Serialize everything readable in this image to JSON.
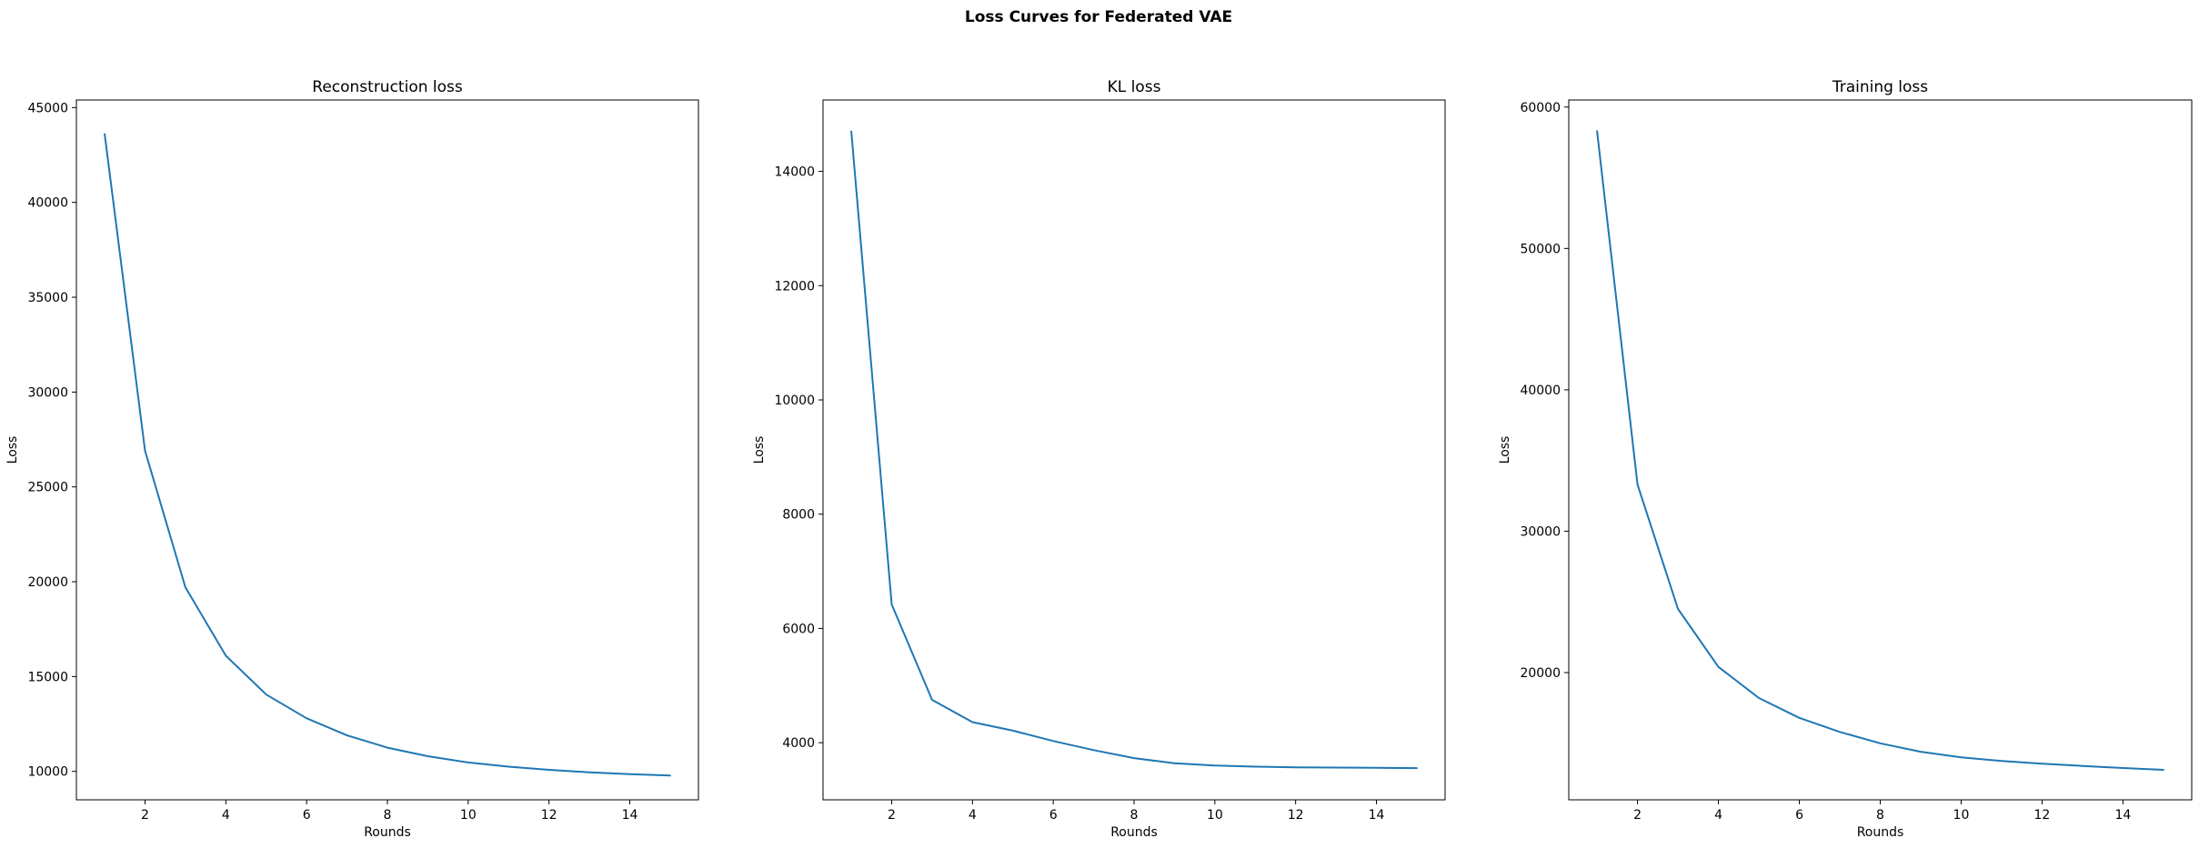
{
  "suptitle": "Loss Curves for Federated VAE",
  "chart_data": [
    {
      "type": "line",
      "title": "Reconstruction loss",
      "xlabel": "Rounds",
      "ylabel": "Loss",
      "x": [
        1,
        2,
        3,
        4,
        5,
        6,
        7,
        8,
        9,
        10,
        11,
        12,
        13,
        14,
        15
      ],
      "values": [
        43600,
        26900,
        19700,
        16100,
        14050,
        12800,
        11900,
        11250,
        10800,
        10470,
        10250,
        10080,
        9950,
        9850,
        9780
      ],
      "xlim": [
        0.3,
        15.7
      ],
      "ylim": [
        8500,
        45400
      ],
      "xticks": [
        2,
        4,
        6,
        8,
        10,
        12,
        14
      ],
      "yticks": [
        10000,
        15000,
        20000,
        25000,
        30000,
        35000,
        40000,
        45000
      ],
      "grid": false,
      "color": "#1f77b4"
    },
    {
      "type": "line",
      "title": "KL loss",
      "xlabel": "Rounds",
      "ylabel": "Loss",
      "x": [
        1,
        2,
        3,
        4,
        5,
        6,
        7,
        8,
        9,
        10,
        11,
        12,
        13,
        14,
        15
      ],
      "values": [
        14700,
        6420,
        4750,
        4360,
        4210,
        4030,
        3870,
        3730,
        3640,
        3600,
        3580,
        3570,
        3565,
        3560,
        3555
      ],
      "xlim": [
        0.3,
        15.7
      ],
      "ylim": [
        3000,
        15250
      ],
      "xticks": [
        2,
        4,
        6,
        8,
        10,
        12,
        14
      ],
      "yticks": [
        4000,
        6000,
        8000,
        10000,
        12000,
        14000
      ],
      "grid": false,
      "color": "#1f77b4"
    },
    {
      "type": "line",
      "title": "Training loss",
      "xlabel": "Rounds",
      "ylabel": "Loss",
      "x": [
        1,
        2,
        3,
        4,
        5,
        6,
        7,
        8,
        9,
        10,
        11,
        12,
        13,
        14,
        15
      ],
      "values": [
        58300,
        33300,
        24500,
        20400,
        18200,
        16800,
        15800,
        15000,
        14400,
        14000,
        13750,
        13550,
        13400,
        13250,
        13120
      ],
      "xlim": [
        0.3,
        15.7
      ],
      "ylim": [
        11000,
        60500
      ],
      "xticks": [
        2,
        4,
        6,
        8,
        10,
        12,
        14
      ],
      "yticks": [
        20000,
        30000,
        40000,
        50000,
        60000
      ],
      "grid": false,
      "color": "#1f77b4"
    }
  ]
}
